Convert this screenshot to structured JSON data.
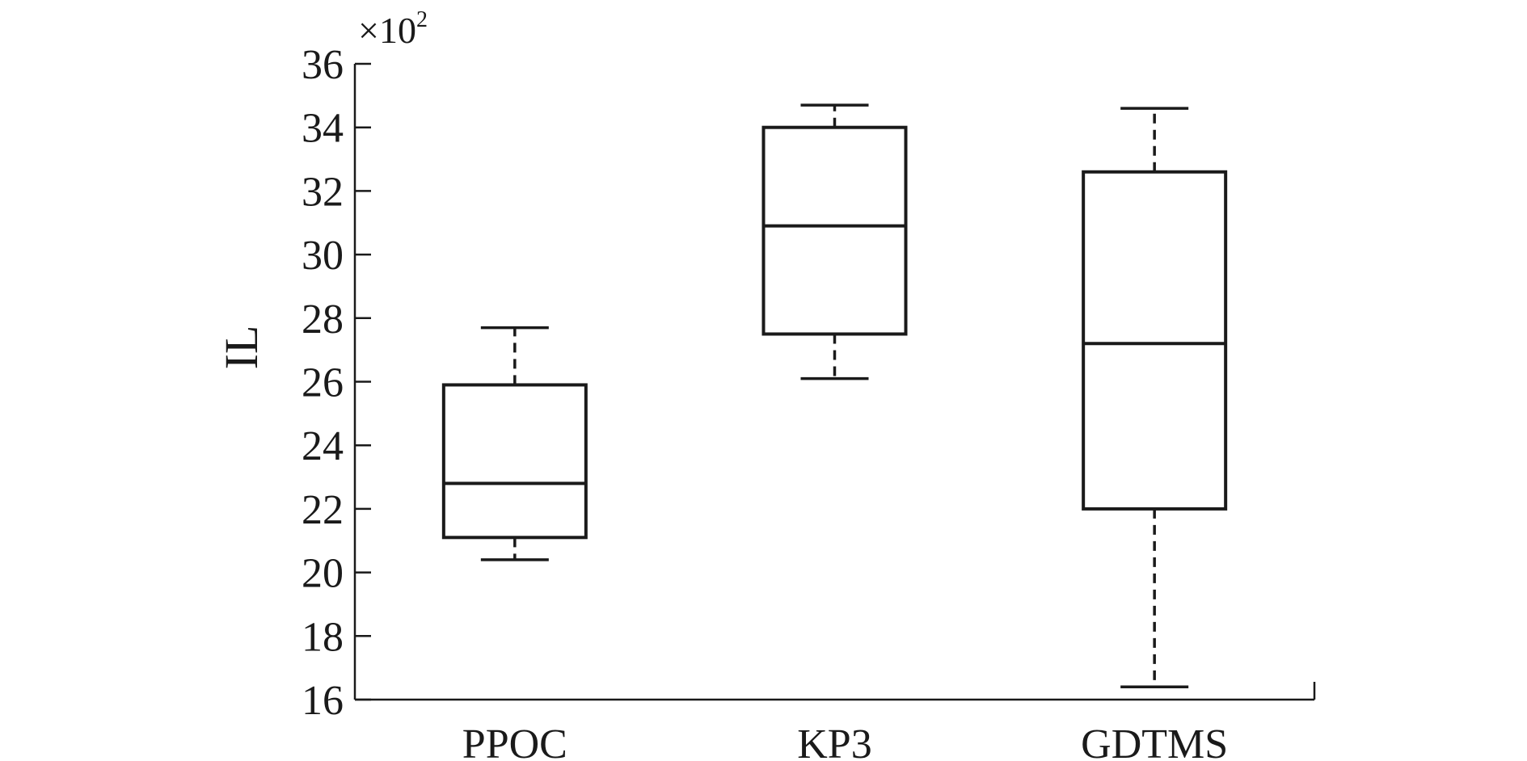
{
  "chart_data": {
    "type": "box",
    "title": "",
    "xlabel": "",
    "ylabel": "IL",
    "y_scale_label": "×10",
    "y_scale_exponent": "2",
    "ylim": [
      16,
      36
    ],
    "y_ticks": [
      16,
      18,
      20,
      22,
      24,
      26,
      28,
      30,
      32,
      34,
      36
    ],
    "categories": [
      "PPOC",
      "KP3",
      "GDTMS"
    ],
    "boxes": [
      {
        "name": "PPOC",
        "whisker_low": 20.4,
        "q1": 21.1,
        "median": 22.8,
        "q3": 25.9,
        "whisker_high": 27.7
      },
      {
        "name": "KP3",
        "whisker_low": 26.1,
        "q1": 27.5,
        "median": 30.9,
        "q3": 34.0,
        "whisker_high": 34.7
      },
      {
        "name": "GDTMS",
        "whisker_low": 16.4,
        "q1": 22.0,
        "median": 27.2,
        "q3": 32.6,
        "whisker_high": 34.6
      }
    ],
    "grid": false,
    "legend": "none"
  }
}
